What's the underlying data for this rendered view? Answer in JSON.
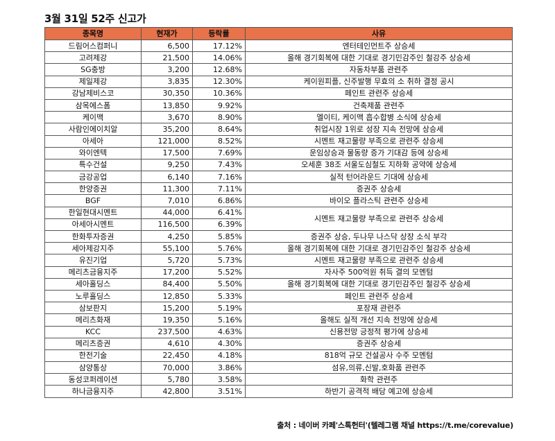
{
  "title": "3월 31일 52주 신고가",
  "headers": {
    "name": "종목명",
    "price": "현재가",
    "rate": "등락률",
    "reason": "사유"
  },
  "rows": [
    {
      "name": "드림어스컴퍼니",
      "price": "6,500",
      "rate": "17.12%",
      "reason": "엔터테인먼트주 상승세",
      "span": 1
    },
    {
      "name": "고려제강",
      "price": "21,500",
      "rate": "14.06%",
      "reason": "올해 경기회복에 대한 기대로 경기민감주인 철강주 상승세",
      "span": 1
    },
    {
      "name": "SG충방",
      "price": "3,200",
      "rate": "12.68%",
      "reason": "자동차부품 관련주",
      "span": 1
    },
    {
      "name": "제일제강",
      "price": "3,835",
      "rate": "12.30%",
      "reason": "케이원피플, 신주발행 무효의 소 취하 결정 공시",
      "span": 1
    },
    {
      "name": "강남제비스코",
      "price": "30,350",
      "rate": "10.36%",
      "reason": "페인트 관련주 상승세",
      "span": 1
    },
    {
      "name": "삼목에스폼",
      "price": "13,850",
      "rate": "9.92%",
      "reason": "건축제품 관련주",
      "span": 1
    },
    {
      "name": "케이맥",
      "price": "3,670",
      "rate": "8.90%",
      "reason": "엘이티, 케이맥 흡수합병 소식에 상승세",
      "span": 1
    },
    {
      "name": "사람인에이치알",
      "price": "35,200",
      "rate": "8.64%",
      "reason": "취업시장 1위로 성장 지속 전망에 상승세",
      "span": 1
    },
    {
      "name": "아세아",
      "price": "121,000",
      "rate": "8.52%",
      "reason": "시멘트 재고물량 부족으로 관련주 상승세",
      "span": 1
    },
    {
      "name": "와이엔텍",
      "price": "17,500",
      "rate": "7.69%",
      "reason": "운임상승과 물동량 증가 기대감 등에 상승세",
      "span": 1
    },
    {
      "name": "특수건설",
      "price": "9,250",
      "rate": "7.43%",
      "reason": "오세훈 38조 서울도심철도 지하화 공약에 상승세",
      "span": 1
    },
    {
      "name": "금강공업",
      "price": "6,140",
      "rate": "7.16%",
      "reason": "실적 턴어라운드 기대에 상승세",
      "span": 1
    },
    {
      "name": "한양증권",
      "price": "11,300",
      "rate": "7.11%",
      "reason": "증권주 상승세",
      "span": 1
    },
    {
      "name": "BGF",
      "price": "7,010",
      "rate": "6.86%",
      "reason": "바이오 플라스틱 관련주 상승세",
      "span": 1
    },
    {
      "name": "한일현대시멘트",
      "price": "44,000",
      "rate": "6.41%",
      "reason": "시멘트 재고물량 부족으로 관련주 상승세",
      "span": 2
    },
    {
      "name": "아세아시멘트",
      "price": "116,500",
      "rate": "6.39%",
      "reason": "",
      "span": 0
    },
    {
      "name": "한화투자증권",
      "price": "4,250",
      "rate": "5.85%",
      "reason": "증권주 상승, 두나무 나스닥 상장 소식 부각",
      "span": 1
    },
    {
      "name": "세아제강지주",
      "price": "55,100",
      "rate": "5.76%",
      "reason": "올해 경기회복에 대한 기대로 경기민감주인 철강주 상승세",
      "span": 1
    },
    {
      "name": "유진기업",
      "price": "5,720",
      "rate": "5.73%",
      "reason": "시멘트 재고물량 부족으로 관련주 상승세",
      "span": 1
    },
    {
      "name": "메리츠금융지주",
      "price": "17,200",
      "rate": "5.52%",
      "reason": "자사주 500억원 취득 결의 모멘텀",
      "span": 1
    },
    {
      "name": "세아홀딩스",
      "price": "84,400",
      "rate": "5.50%",
      "reason": "올해 경기회복에 대한 기대로 경기민감주인 철강주 상승세",
      "span": 1
    },
    {
      "name": "노루홀딩스",
      "price": "12,850",
      "rate": "5.33%",
      "reason": "페인트 관련주 상승세",
      "span": 1
    },
    {
      "name": "삼보판지",
      "price": "15,200",
      "rate": "5.19%",
      "reason": "포장재 관련주",
      "span": 1
    },
    {
      "name": "메리츠화재",
      "price": "19,350",
      "rate": "5.16%",
      "reason": "올해도 실적 개선 지속 전망에 상승세",
      "span": 1
    },
    {
      "name": "KCC",
      "price": "237,500",
      "rate": "4.63%",
      "reason": "신용전망 긍정적 평가에 상승세",
      "span": 1
    },
    {
      "name": "메리츠증권",
      "price": "4,610",
      "rate": "4.30%",
      "reason": "증권주 상승세",
      "span": 1
    },
    {
      "name": "한전기술",
      "price": "22,450",
      "rate": "4.18%",
      "reason": "818억 규모 건설공사 수주 모멘텀",
      "span": 1
    },
    {
      "name": "삼양통상",
      "price": "70,000",
      "rate": "3.86%",
      "reason": "섬유,의류,신발,호화품 관련주",
      "span": 1
    },
    {
      "name": "동성코퍼레이션",
      "price": "5,780",
      "rate": "3.58%",
      "reason": "화학 관련주",
      "span": 1
    },
    {
      "name": "하나금융지주",
      "price": "42,800",
      "rate": "3.51%",
      "reason": "하반기 공격적 배당 예고에 상승세",
      "span": 1
    }
  ],
  "source": "출처 : 네이버 카페'스톡헌터'(텔레그램 채널 https://t.me/corevalue)",
  "colors": {
    "header_bg": "#e8734a",
    "border": "#555555"
  }
}
